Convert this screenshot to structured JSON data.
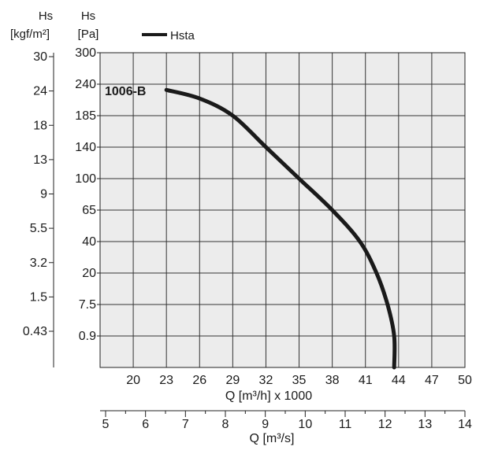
{
  "chart_data": {
    "type": "line",
    "legend": {
      "position": "top-left",
      "entries": [
        "Hsta"
      ]
    },
    "grid": true,
    "annotation": "1006-B",
    "left_axis_pa": {
      "title_line1": "Hs",
      "title_line2": "[Pa]",
      "ticks": [
        "300",
        "240",
        "185",
        "140",
        "100",
        "65",
        "40",
        "20",
        "7.5",
        "0.9"
      ]
    },
    "left_axis_kgf": {
      "title_line1": "Hs",
      "title_line2": "[kgf/m²]",
      "ticks": [
        "30",
        "24",
        "18",
        "13",
        "9",
        "5.5",
        "3.2",
        "1.5",
        "0.43"
      ]
    },
    "x_axis_m3h": {
      "label": "Q [m³/h] x 1000",
      "ticks": [
        "20",
        "23",
        "26",
        "29",
        "32",
        "35",
        "38",
        "41",
        "44",
        "47",
        "50"
      ],
      "range": [
        17,
        50
      ]
    },
    "x_axis_m3s": {
      "label": "Q [m³/s]",
      "ticks": [
        "5",
        "6",
        "7",
        "8",
        "9",
        "10",
        "11",
        "12",
        "13",
        "14"
      ],
      "range": [
        5,
        14
      ]
    },
    "series": [
      {
        "name": "Hsta",
        "color": "#1a1a1a",
        "points": [
          {
            "q": 23.0,
            "hs": 230
          },
          {
            "q": 26.0,
            "hs": 215
          },
          {
            "q": 29.0,
            "hs": 185
          },
          {
            "q": 32.0,
            "hs": 140
          },
          {
            "q": 35.0,
            "hs": 100
          },
          {
            "q": 38.0,
            "hs": 65
          },
          {
            "q": 40.5,
            "hs": 40
          },
          {
            "q": 42.0,
            "hs": 20
          },
          {
            "q": 43.0,
            "hs": 7.5
          },
          {
            "q": 43.6,
            "hs": 0.9
          },
          {
            "q": 43.6,
            "hs": 0
          }
        ]
      }
    ]
  }
}
